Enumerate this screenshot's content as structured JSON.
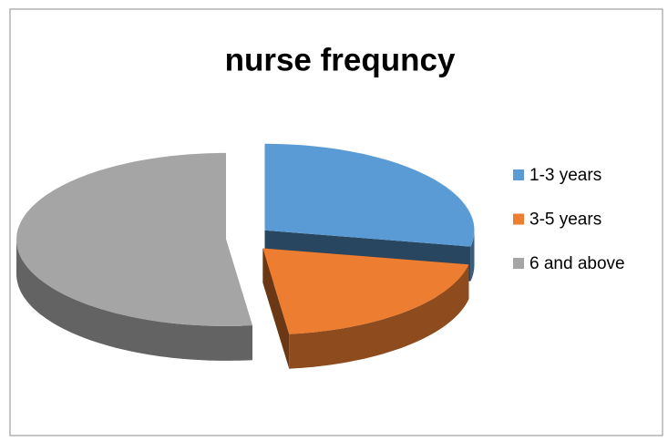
{
  "chart_data": {
    "type": "pie",
    "title": "nurse frequncy",
    "categories": [
      "1-3 years",
      "3-5 years",
      "6 and above"
    ],
    "values": [
      28,
      20,
      52
    ],
    "colors": [
      "#5b9bd5",
      "#ed7d31",
      "#a5a5a5"
    ],
    "legend": "right"
  }
}
